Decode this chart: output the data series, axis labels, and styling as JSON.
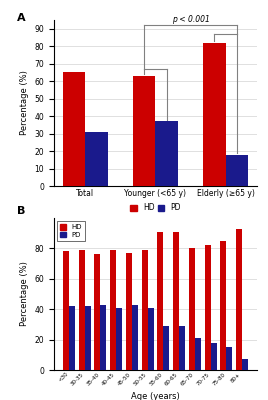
{
  "panel_a": {
    "categories": [
      "Total",
      "Younger (<65 y)",
      "Elderly (≥65 y)"
    ],
    "HD": [
      65,
      63,
      82
    ],
    "PD": [
      31,
      37,
      18
    ],
    "HD_color": "#cc0000",
    "PD_color": "#1a1a8c",
    "ylabel": "Percentage (%)",
    "ylim": [
      0,
      95
    ],
    "yticks": [
      0,
      10,
      20,
      30,
      40,
      50,
      60,
      70,
      80,
      90
    ],
    "label": "A",
    "pvalue_text": "p < 0.001"
  },
  "panel_b": {
    "age_groups": [
      "<30",
      "30-35",
      "35-40",
      "40-45",
      "45-50",
      "50-55",
      "55-60",
      "60-65",
      "65-70",
      "70-75",
      "75-80",
      "80+"
    ],
    "HD": [
      78,
      79,
      76,
      79,
      77,
      79,
      91,
      91,
      80,
      82,
      85,
      93
    ],
    "PD": [
      42,
      42,
      43,
      41,
      43,
      41,
      29,
      29,
      21,
      18,
      15,
      7
    ],
    "HD_color": "#cc0000",
    "PD_color": "#1a1a8c",
    "ylabel": "Percentage (%)",
    "xlabel": "Age (years)",
    "ylim": [
      0,
      100
    ],
    "yticks": [
      0,
      20,
      40,
      60,
      80
    ],
    "label": "B"
  }
}
